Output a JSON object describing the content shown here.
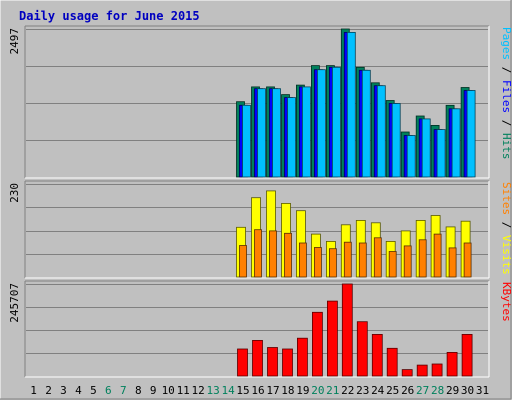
{
  "chart_data": {
    "type": "bar",
    "title": "Daily usage for June 2015",
    "categories": [
      "1",
      "2",
      "3",
      "4",
      "5",
      "6",
      "7",
      "8",
      "9",
      "10",
      "11",
      "12",
      "13",
      "14",
      "15",
      "16",
      "17",
      "18",
      "19",
      "20",
      "21",
      "22",
      "23",
      "24",
      "25",
      "26",
      "27",
      "28",
      "29",
      "30",
      "31"
    ],
    "weekend_days": [
      "6",
      "7",
      "13",
      "14",
      "20",
      "21",
      "27",
      "28"
    ],
    "panels": [
      {
        "id": "hits",
        "max_label": "2497",
        "ymax": 2497,
        "legend": [
          {
            "text": "Pages",
            "color": "#00c0ff"
          },
          {
            "text": " / ",
            "color": "#000000"
          },
          {
            "text": "Files",
            "color": "#0000ff"
          },
          {
            "text": " / ",
            "color": "#000000"
          },
          {
            "text": "Hits",
            "color": "#00805c"
          }
        ],
        "series": [
          {
            "name": "Hits",
            "color": "#00805c",
            "values": [
              null,
              null,
              null,
              null,
              null,
              null,
              null,
              null,
              null,
              null,
              null,
              null,
              null,
              null,
              1270,
              1520,
              1520,
              1390,
              1550,
              1880,
              1880,
              2497,
              1850,
              1590,
              1290,
              760,
              1030,
              870,
              1210,
              1510,
              null
            ]
          },
          {
            "name": "Files",
            "color": "#0000ff",
            "values": [
              null,
              null,
              null,
              null,
              null,
              null,
              null,
              null,
              null,
              null,
              null,
              null,
              null,
              null,
              1210,
              1490,
              1490,
              1340,
              1520,
              1810,
              1850,
              2440,
              1800,
              1540,
              1240,
              700,
              980,
              800,
              1150,
              1460,
              null
            ]
          },
          {
            "name": "Pages",
            "color": "#00c0ff",
            "values": [
              null,
              null,
              null,
              null,
              null,
              null,
              null,
              null,
              null,
              null,
              null,
              null,
              null,
              null,
              1210,
              1490,
              1490,
              1340,
              1520,
              1810,
              1850,
              2440,
              1800,
              1540,
              1240,
              700,
              980,
              800,
              1150,
              1460,
              null
            ]
          }
        ]
      },
      {
        "id": "visits",
        "max_label": "230",
        "ymax": 230,
        "legend": [
          {
            "text": "Sites",
            "color": "#ff8000"
          },
          {
            "text": " / ",
            "color": "#000000"
          },
          {
            "text": "Visits",
            "color": "#ffff00"
          }
        ],
        "series": [
          {
            "name": "Visits",
            "color": "#ffff00",
            "values": [
              null,
              null,
              null,
              null,
              null,
              null,
              null,
              null,
              null,
              null,
              null,
              null,
              null,
              null,
              123,
              196,
              213,
              182,
              164,
              106,
              88,
              129,
              140,
              134,
              88,
              114,
              140,
              152,
              124,
              138,
              null
            ]
          },
          {
            "name": "Sites",
            "color": "#ff8000",
            "values": [
              null,
              null,
              null,
              null,
              null,
              null,
              null,
              null,
              null,
              null,
              null,
              null,
              null,
              null,
              78,
              117,
              114,
              108,
              84,
              73,
              70,
              86,
              84,
              97,
              63,
              77,
              92,
              106,
              72,
              84,
              null
            ]
          }
        ]
      },
      {
        "id": "kbytes",
        "max_label": "245707",
        "ymax": 245707,
        "legend": [
          {
            "text": "KBytes",
            "color": "#ff0000"
          }
        ],
        "series": [
          {
            "name": "KBytes",
            "color": "#ff0000",
            "values": [
              null,
              null,
              null,
              null,
              null,
              null,
              null,
              null,
              null,
              null,
              null,
              null,
              null,
              null,
              72000,
              95000,
              76000,
              72000,
              101000,
              170000,
              200000,
              245707,
              145000,
              111000,
              74000,
              17000,
              29000,
              32000,
              63000,
              111000,
              null
            ]
          }
        ]
      }
    ]
  }
}
